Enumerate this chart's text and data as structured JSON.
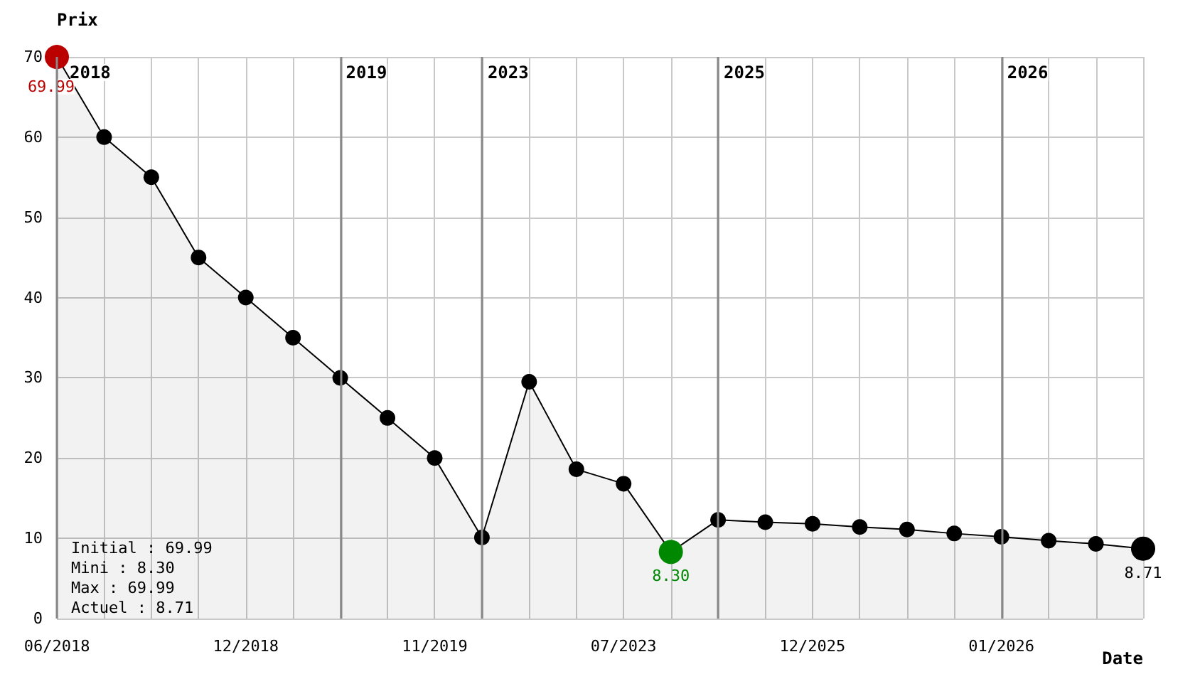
{
  "chart_data": {
    "type": "area",
    "xlabel": "Date",
    "ylabel": "Prix",
    "categories": [
      "06/2018",
      null,
      null,
      null,
      "12/2018",
      null,
      null,
      null,
      "11/2019",
      null,
      null,
      null,
      "07/2023",
      null,
      null,
      null,
      "12/2025",
      null,
      null,
      null,
      "01/2026",
      null,
      null,
      null
    ],
    "ylim": [
      0,
      70
    ],
    "yticks": [
      0,
      10,
      20,
      30,
      40,
      50,
      60,
      70
    ],
    "series": [
      {
        "color": "#000000",
        "values": [
          69.99,
          60,
          55,
          45,
          40,
          35,
          30,
          25,
          20,
          10.1,
          29.5,
          18.6,
          16.8,
          8.3,
          12.3,
          12.0,
          11.8,
          11.4,
          11.1,
          10.6,
          10.2,
          9.7,
          9.3,
          8.71
        ],
        "colors": [
          "#bb0000",
          "#000000",
          "#000000",
          "#000000",
          "#000000",
          "#000000",
          "#000000",
          "#000000",
          "#000000",
          "#000000",
          "#000000",
          "#000000",
          "#000000",
          "#008800",
          "#000000",
          "#000000",
          "#000000",
          "#000000",
          "#000000",
          "#000000",
          "#000000",
          "#000000",
          "#000000",
          "#000000"
        ],
        "value_labels": [
          "69.99",
          null,
          null,
          null,
          null,
          null,
          null,
          null,
          null,
          null,
          null,
          null,
          null,
          "8.30",
          null,
          null,
          null,
          null,
          null,
          null,
          null,
          null,
          null,
          "8.71"
        ]
      }
    ],
    "annotations": [
      "2018",
      "2019",
      "2023",
      "2025",
      "2026",
      "Initial : 69.99",
      "Mini : 8.30",
      "Max : 69.99",
      "Actuel : 8.71"
    ],
    "grid": true,
    "marker": "circle",
    "line_style": "solid"
  }
}
